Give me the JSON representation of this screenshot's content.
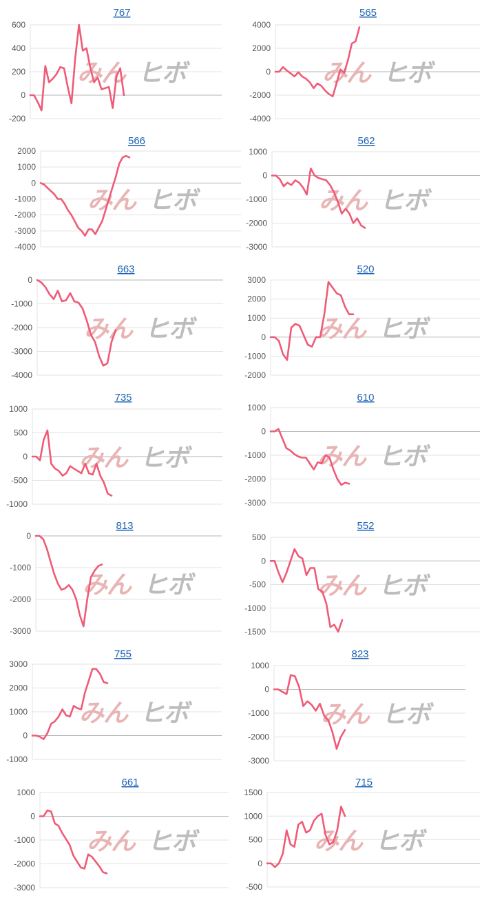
{
  "colors": {
    "line": "#ef5b77",
    "grid": "#e3e3e3",
    "zero_axis": "#b5b5b5",
    "title": "#1a62b5",
    "tick": "#555555",
    "watermark_left": "#e9b4b4",
    "watermark_right": "#bdbdbd"
  },
  "watermark": {
    "left": "みん",
    "right": "ヒボ"
  },
  "chart_data": [
    {
      "type": "line",
      "title": "767",
      "ylim": [
        -200,
        600
      ],
      "yticks": [
        -200,
        0,
        200,
        400,
        600
      ],
      "values": [
        0,
        0,
        -60,
        -130,
        250,
        110,
        140,
        180,
        240,
        230,
        70,
        -70,
        320,
        600,
        380,
        400,
        240,
        110,
        150,
        50,
        60,
        70,
        -110,
        160,
        230,
        0
      ]
    },
    {
      "type": "line",
      "title": "565",
      "ylim": [
        -4000,
        4000
      ],
      "yticks": [
        -4000,
        -2000,
        0,
        2000,
        4000
      ],
      "values": [
        0,
        0,
        400,
        100,
        -150,
        -400,
        -50,
        -400,
        -600,
        -900,
        -1400,
        -1000,
        -1200,
        -1600,
        -1900,
        -2100,
        -1000,
        200,
        -100,
        1000,
        2400,
        2600,
        3800
      ]
    },
    {
      "type": "line",
      "title": "566",
      "ylim": [
        -4000,
        2000
      ],
      "yticks": [
        -4000,
        -3000,
        -2000,
        -1000,
        0,
        1000,
        2000
      ],
      "values": [
        0,
        -100,
        -300,
        -500,
        -700,
        -1000,
        -1000,
        -1300,
        -1700,
        -2000,
        -2400,
        -2800,
        -3000,
        -3300,
        -2900,
        -2900,
        -3200,
        -2800,
        -2400,
        -1700,
        -1000,
        -300,
        400,
        1200,
        1600,
        1700,
        1600
      ]
    },
    {
      "type": "line",
      "title": "562",
      "ylim": [
        -3000,
        1000
      ],
      "yticks": [
        -3000,
        -2000,
        -1000,
        0,
        1000
      ],
      "values": [
        0,
        0,
        -150,
        -450,
        -300,
        -400,
        -200,
        -300,
        -500,
        -800,
        300,
        0,
        -100,
        -150,
        -200,
        -400,
        -700,
        -1100,
        -1600,
        -1400,
        -1600,
        -2000,
        -1800,
        -2100,
        -2200
      ]
    },
    {
      "type": "line",
      "title": "663",
      "ylim": [
        -4000,
        0
      ],
      "yticks": [
        -4000,
        -3000,
        -2000,
        -1000,
        0
      ],
      "values": [
        0,
        -100,
        -300,
        -600,
        -800,
        -450,
        -900,
        -850,
        -550,
        -900,
        -950,
        -1200,
        -1700,
        -2300,
        -2600,
        -3200,
        -3600,
        -3500,
        -2600,
        -2100
      ]
    },
    {
      "type": "line",
      "title": "520",
      "ylim": [
        -2000,
        3000
      ],
      "yticks": [
        -2000,
        -1000,
        0,
        1000,
        2000,
        3000
      ],
      "values": [
        0,
        0,
        -200,
        -900,
        -1200,
        500,
        700,
        600,
        100,
        -400,
        -500,
        0,
        0,
        1200,
        2900,
        2600,
        2300,
        2200,
        1600,
        1200,
        1200
      ]
    },
    {
      "type": "line",
      "title": "735",
      "ylim": [
        -1000,
        1000
      ],
      "yticks": [
        -1000,
        -500,
        0,
        500,
        1000
      ],
      "values": [
        0,
        0,
        -80,
        350,
        550,
        -150,
        -250,
        -300,
        -400,
        -350,
        -200,
        -250,
        -300,
        -350,
        -150,
        -350,
        -380,
        -150,
        -400,
        -550,
        -780,
        -820
      ]
    },
    {
      "type": "line",
      "title": "610",
      "ylim": [
        -3000,
        1000
      ],
      "yticks": [
        -3000,
        -2000,
        -1000,
        0,
        1000
      ],
      "values": [
        0,
        0,
        100,
        -300,
        -700,
        -800,
        -950,
        -1050,
        -1100,
        -1100,
        -1350,
        -1600,
        -1300,
        -1350,
        -1000,
        -1100,
        -1600,
        -2000,
        -2250,
        -2150,
        -2200
      ]
    },
    {
      "type": "line",
      "title": "813",
      "ylim": [
        -3000,
        0
      ],
      "yticks": [
        -3000,
        -2000,
        -1000,
        0
      ],
      "values": [
        0,
        0,
        -100,
        -400,
        -800,
        -1200,
        -1500,
        -1700,
        -1650,
        -1550,
        -1700,
        -2000,
        -2500,
        -2850,
        -2000,
        -1300,
        -1100,
        -950,
        -900
      ]
    },
    {
      "type": "line",
      "title": "552",
      "ylim": [
        -1500,
        500
      ],
      "yticks": [
        -1500,
        -1000,
        -500,
        0,
        500
      ],
      "values": [
        0,
        0,
        -250,
        -450,
        -250,
        0,
        250,
        100,
        50,
        -300,
        -150,
        -150,
        -600,
        -650,
        -900,
        -1400,
        -1350,
        -1500,
        -1250
      ]
    },
    {
      "type": "line",
      "title": "755",
      "ylim": [
        -1000,
        3000
      ],
      "yticks": [
        -1000,
        0,
        1000,
        2000,
        3000
      ],
      "values": [
        0,
        0,
        -50,
        -150,
        100,
        500,
        600,
        800,
        1100,
        850,
        800,
        1250,
        1150,
        1100,
        1800,
        2300,
        2800,
        2800,
        2600,
        2250,
        2200
      ]
    },
    {
      "type": "line",
      "title": "823",
      "ylim": [
        -3000,
        1000
      ],
      "yticks": [
        -3000,
        -2000,
        -1000,
        0,
        1000
      ],
      "values": [
        0,
        0,
        -100,
        -200,
        600,
        550,
        100,
        -700,
        -500,
        -650,
        -900,
        -600,
        -1100,
        -1300,
        -1800,
        -2500,
        -2000,
        -1700
      ]
    },
    {
      "type": "line",
      "title": "661",
      "ylim": [
        -3000,
        1000
      ],
      "yticks": [
        -3000,
        -2000,
        -1000,
        0,
        1000
      ],
      "values": [
        0,
        0,
        250,
        200,
        -300,
        -400,
        -700,
        -950,
        -1200,
        -1650,
        -1900,
        -2150,
        -2200,
        -1600,
        -1700,
        -1900,
        -2100,
        -2350,
        -2400
      ]
    },
    {
      "type": "line",
      "title": "715",
      "ylim": [
        -500,
        1500
      ],
      "yticks": [
        -500,
        0,
        500,
        1000,
        1500
      ],
      "values": [
        0,
        0,
        -80,
        0,
        200,
        700,
        400,
        350,
        820,
        880,
        650,
        700,
        900,
        1000,
        1050,
        600,
        400,
        450,
        700,
        1200,
        1000
      ]
    }
  ]
}
